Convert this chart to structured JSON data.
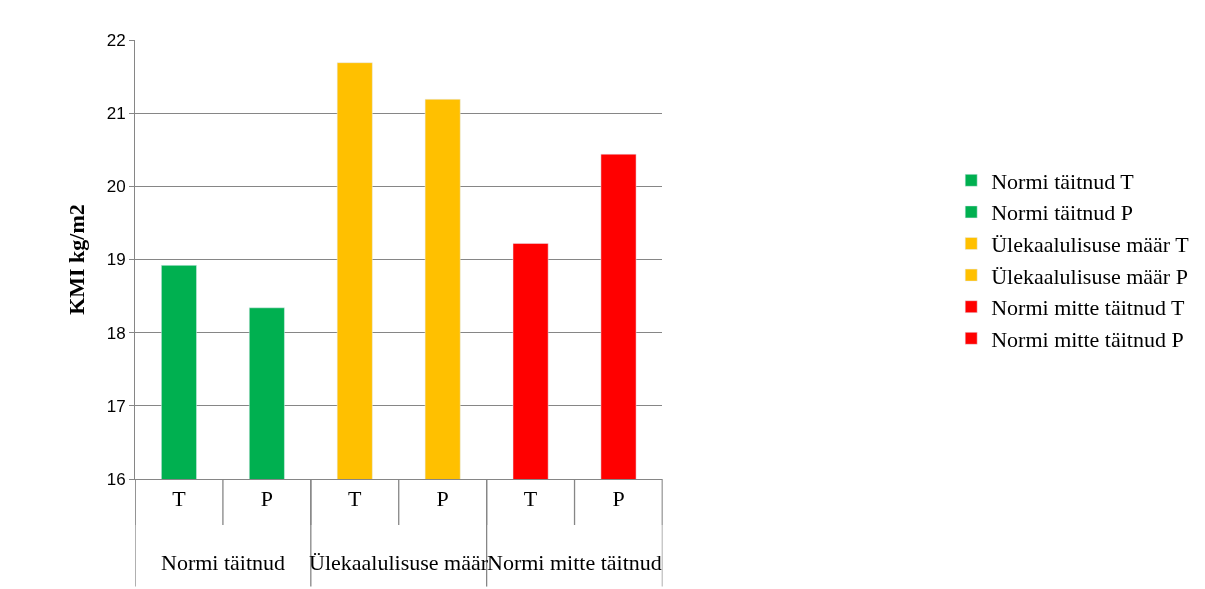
{
  "chart_data": {
    "type": "bar",
    "ylabel": "KMI kg/m2",
    "categories": [
      "T",
      "P",
      "T",
      "P",
      "T",
      "P"
    ],
    "annotations": [
      "Normi täitnud",
      "Ülekaalulisuse määr",
      "Normi mitte täitnud"
    ],
    "series": [
      {
        "name": "Normi täitnud T",
        "color": "#00b050",
        "values": [
          18.92,
          null,
          null,
          null,
          null,
          null
        ]
      },
      {
        "name": "Normi täitnud P",
        "color": "#00b050",
        "values": [
          null,
          18.34,
          null,
          null,
          null,
          null
        ]
      },
      {
        "name": "Ülekaalulisuse määr T",
        "color": "#ffc000",
        "values": [
          null,
          null,
          21.69,
          null,
          null,
          null
        ]
      },
      {
        "name": "Ülekaalulisuse määr P",
        "color": "#ffc000",
        "values": [
          null,
          null,
          null,
          21.19,
          null,
          null
        ]
      },
      {
        "name": "Normi mitte täitnud T",
        "color": "#ff0000",
        "values": [
          null,
          null,
          null,
          null,
          19.22,
          null
        ]
      },
      {
        "name": "Normi mitte täitnud P",
        "color": "#ff0000",
        "values": [
          null,
          null,
          null,
          null,
          null,
          20.44
        ]
      }
    ],
    "ylim": [
      16,
      22
    ],
    "yticks": [
      16,
      17,
      18,
      19,
      20,
      21,
      22
    ],
    "grid": "y",
    "legend": "right"
  }
}
